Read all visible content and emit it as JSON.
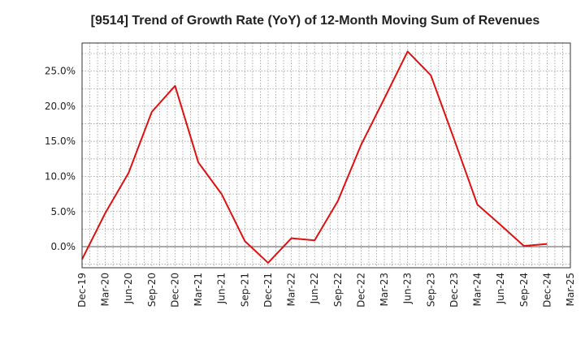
{
  "chart_data": {
    "type": "line",
    "title": "[9514]  Trend of Growth Rate (YoY) of 12-Month Moving Sum of Revenues",
    "xlabel": "",
    "ylabel": "",
    "categories": [
      "Dec-19",
      "Mar-20",
      "Jun-20",
      "Sep-20",
      "Dec-20",
      "Mar-21",
      "Jun-21",
      "Sep-21",
      "Dec-21",
      "Mar-22",
      "Jun-22",
      "Sep-22",
      "Dec-22",
      "Mar-23",
      "Jun-23",
      "Sep-23",
      "Dec-23",
      "Mar-24",
      "Jun-24",
      "Sep-24",
      "Dec-24",
      "Mar-25"
    ],
    "series": [
      {
        "values": [
          -1.8,
          4.8,
          10.5,
          19.2,
          22.9,
          12.0,
          7.5,
          0.8,
          -2.3,
          1.2,
          0.9,
          6.5,
          14.5,
          21.1,
          27.8,
          24.4,
          15.3,
          6.0,
          3.1,
          0.1,
          0.4,
          null
        ],
        "color": "#dd1111"
      }
    ],
    "ylim": [
      -3.0,
      29.0
    ],
    "yticks": [
      0,
      5,
      10,
      15,
      20,
      25
    ],
    "ytick_labels": [
      "0.0%",
      "5.0%",
      "10.0%",
      "15.0%",
      "20.0%",
      "25.0%"
    ],
    "grid": true,
    "legend": "none"
  }
}
